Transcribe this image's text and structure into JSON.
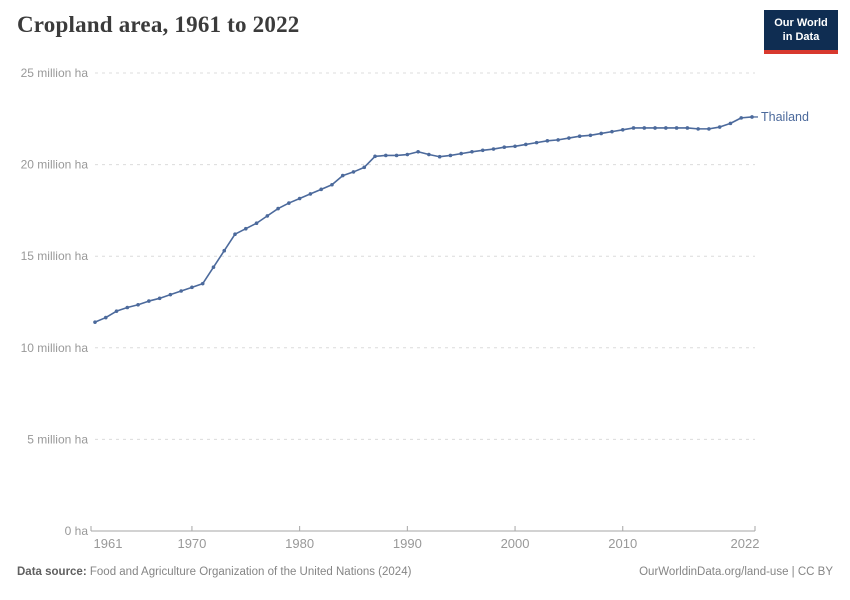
{
  "header": {
    "title": "Cropland area, 1961 to 2022"
  },
  "logo": {
    "line1": "Our World",
    "line2": "in Data",
    "bg_color": "#0f2d52",
    "accent_color": "#d8392e"
  },
  "chart_data": {
    "type": "line",
    "title": "Cropland area, 1961 to 2022",
    "xlabel": "",
    "ylabel": "",
    "unit": "million ha",
    "xlim": [
      1961,
      2022
    ],
    "ylim": [
      0,
      25
    ],
    "grid": "horizontal-dashed",
    "legend_position": "end-of-line-label",
    "x_ticks": [
      1961,
      1970,
      1980,
      1990,
      2000,
      2010,
      2022
    ],
    "y_ticks": [
      {
        "value": 0,
        "label": "0 ha"
      },
      {
        "value": 5,
        "label": "5 million ha"
      },
      {
        "value": 10,
        "label": "10 million ha"
      },
      {
        "value": 15,
        "label": "15 million ha"
      },
      {
        "value": 20,
        "label": "20 million ha"
      },
      {
        "value": 25,
        "label": "25 million ha"
      }
    ],
    "series": [
      {
        "name": "Thailand",
        "color": "#4C6A9C",
        "x": [
          1961,
          1962,
          1963,
          1964,
          1965,
          1966,
          1967,
          1968,
          1969,
          1970,
          1971,
          1972,
          1973,
          1974,
          1975,
          1976,
          1977,
          1978,
          1979,
          1980,
          1981,
          1982,
          1983,
          1984,
          1985,
          1986,
          1987,
          1988,
          1989,
          1990,
          1991,
          1992,
          1993,
          1994,
          1995,
          1996,
          1997,
          1998,
          1999,
          2000,
          2001,
          2002,
          2003,
          2004,
          2005,
          2006,
          2007,
          2008,
          2009,
          2010,
          2011,
          2012,
          2013,
          2014,
          2015,
          2016,
          2017,
          2018,
          2019,
          2020,
          2021,
          2022
        ],
        "values": [
          11.4,
          11.65,
          12.0,
          12.2,
          12.35,
          12.55,
          12.7,
          12.9,
          13.1,
          13.3,
          13.5,
          14.4,
          15.3,
          16.2,
          16.5,
          16.8,
          17.2,
          17.6,
          17.9,
          18.15,
          18.4,
          18.65,
          18.9,
          19.4,
          19.6,
          19.85,
          20.45,
          20.5,
          20.5,
          20.55,
          20.7,
          20.55,
          20.43,
          20.5,
          20.6,
          20.7,
          20.78,
          20.85,
          20.95,
          21.0,
          21.1,
          21.2,
          21.3,
          21.35,
          21.45,
          21.55,
          21.6,
          21.7,
          21.8,
          21.9,
          22.0,
          22.0,
          22.0,
          22.0,
          22.0,
          22.0,
          21.95,
          21.95,
          22.05,
          22.25,
          22.55,
          22.6
        ]
      }
    ]
  },
  "footer": {
    "datasource_label": "Data source:",
    "datasource_value": "Food and Agriculture Organization of the United Nations (2024)",
    "credit": "OurWorldinData.org/land-use | CC BY"
  }
}
